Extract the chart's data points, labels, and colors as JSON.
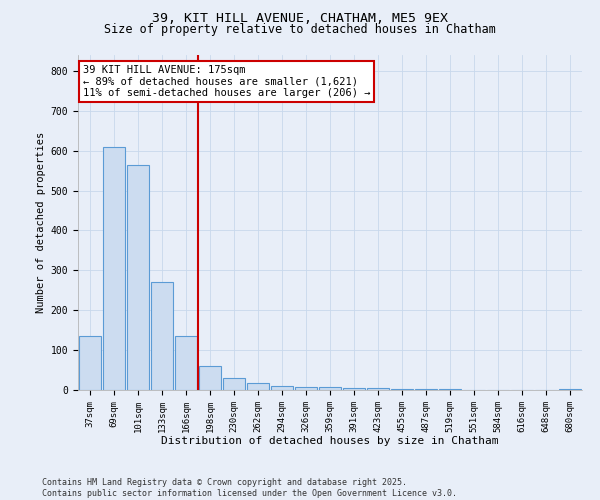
{
  "title_line1": "39, KIT HILL AVENUE, CHATHAM, ME5 9EX",
  "title_line2": "Size of property relative to detached houses in Chatham",
  "xlabel": "Distribution of detached houses by size in Chatham",
  "ylabel": "Number of detached properties",
  "categories": [
    "37sqm",
    "69sqm",
    "101sqm",
    "133sqm",
    "166sqm",
    "198sqm",
    "230sqm",
    "262sqm",
    "294sqm",
    "326sqm",
    "359sqm",
    "391sqm",
    "423sqm",
    "455sqm",
    "487sqm",
    "519sqm",
    "551sqm",
    "584sqm",
    "616sqm",
    "648sqm",
    "680sqm"
  ],
  "values": [
    135,
    610,
    565,
    270,
    135,
    60,
    30,
    17,
    10,
    8,
    7,
    5,
    4,
    3,
    2,
    2,
    1,
    1,
    0,
    0,
    2
  ],
  "bar_color": "#ccdcf0",
  "bar_edge_color": "#5b9bd5",
  "vline_x": 4.5,
  "vline_color": "#cc0000",
  "annotation_text": "39 KIT HILL AVENUE: 175sqm\n← 89% of detached houses are smaller (1,621)\n11% of semi-detached houses are larger (206) →",
  "annotation_box_color": "#ffffff",
  "annotation_box_edge": "#cc0000",
  "ylim": [
    0,
    840
  ],
  "yticks": [
    0,
    100,
    200,
    300,
    400,
    500,
    600,
    700,
    800
  ],
  "grid_color": "#c8d8ec",
  "background_color": "#e8eef8",
  "footer_text": "Contains HM Land Registry data © Crown copyright and database right 2025.\nContains public sector information licensed under the Open Government Licence v3.0.",
  "title_fontsize": 9.5,
  "subtitle_fontsize": 8.5,
  "ann_fontsize": 7.5,
  "tick_fontsize": 6.5,
  "ylabel_fontsize": 7.5,
  "xlabel_fontsize": 8.0,
  "footer_fontsize": 6.0
}
